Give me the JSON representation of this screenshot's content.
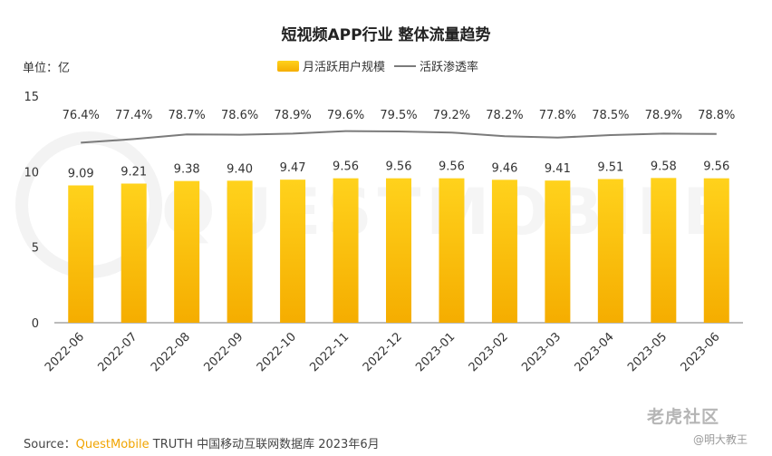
{
  "title": "短视频APP行业 整体流量趋势",
  "unit_label": "单位：亿",
  "legend": {
    "bar_label": "月活跃用户规模",
    "line_label": "活跃渗透率"
  },
  "source": {
    "prefix": "Source：",
    "brand": "QuestMobile",
    "rest": " TRUTH 中国移动互联网数据库 2023年6月"
  },
  "watermark": {
    "logo_text": "老虎社区",
    "author": "@明大教王",
    "background_text": "QUESTMOBILE"
  },
  "colors": {
    "bar_top": "#ffd21c",
    "bar_bottom": "#f5ad00",
    "line": "#7b7b7b"
  },
  "chart_data": {
    "type": "bar",
    "categories": [
      "2022-06",
      "2022-07",
      "2022-08",
      "2022-09",
      "2022-10",
      "2022-11",
      "2022-12",
      "2023-01",
      "2023-02",
      "2023-03",
      "2023-04",
      "2023-05",
      "2023-06"
    ],
    "series": [
      {
        "name": "月活跃用户规模",
        "type": "bar",
        "values": [
          9.09,
          9.21,
          9.38,
          9.4,
          9.47,
          9.56,
          9.56,
          9.56,
          9.46,
          9.41,
          9.51,
          9.58,
          9.56
        ],
        "labels": [
          "9.09",
          "9.21",
          "9.38",
          "9.40",
          "9.47",
          "9.56",
          "9.56",
          "9.56",
          "9.46",
          "9.41",
          "9.51",
          "9.58",
          "9.56"
        ]
      },
      {
        "name": "活跃渗透率",
        "type": "line",
        "values": [
          76.4,
          77.4,
          78.7,
          78.6,
          78.9,
          79.6,
          79.5,
          79.2,
          78.2,
          77.8,
          78.5,
          78.9,
          78.8
        ],
        "labels": [
          "76.4%",
          "77.4%",
          "78.7%",
          "78.6%",
          "78.9%",
          "79.6%",
          "79.5%",
          "79.2%",
          "78.2%",
          "77.8%",
          "78.5%",
          "78.9%",
          "78.8%"
        ]
      }
    ],
    "yticks": [
      "0",
      "5",
      "10",
      "15"
    ],
    "ylim": [
      0,
      15
    ],
    "grid": false
  }
}
